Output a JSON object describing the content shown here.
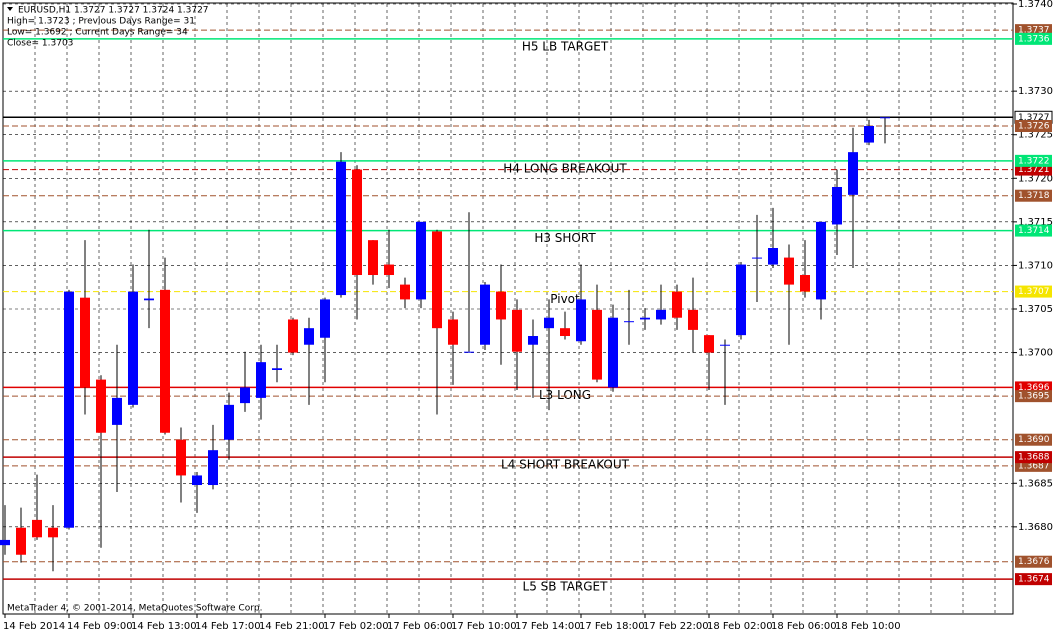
{
  "chart_data": {
    "type": "candlestick",
    "header": [
      "EURUSD,H1  1.3727 1.3727 1.3724 1.3727",
      "High= 1.3723 ;  Previous Days Range= 31",
      "Low= 1.3692 ;  Current Days Range= 34",
      "Close= 1.3703"
    ],
    "copyright": "MetaTrader 4, © 2001-2014, MetaQuotes Software Corp.",
    "categories": [
      "14 Feb 2014",
      null,
      null,
      null,
      "14 Feb 09:00",
      null,
      null,
      null,
      "14 Feb 13:00",
      null,
      null,
      null,
      "14 Feb 17:00",
      null,
      null,
      null,
      "14 Feb 21:00",
      null,
      null,
      null,
      "17 Feb 02:00",
      null,
      null,
      null,
      "17 Feb 06:00",
      null,
      null,
      null,
      "17 Feb 10:00",
      null,
      null,
      null,
      "17 Feb 14:00",
      null,
      null,
      null,
      "17 Feb 18:00",
      null,
      null,
      null,
      "17 Feb 22:00",
      null,
      null,
      null,
      "18 Feb 02:00",
      null,
      null,
      null,
      "18 Feb 06:00",
      null,
      null,
      null,
      "18 Feb 10:00",
      null,
      null,
      null
    ],
    "open": [
      1.36779,
      1.36799,
      1.36808,
      1.36799,
      1.36799,
      1.37063,
      1.36969,
      1.36917,
      1.3694,
      1.3706,
      1.37072,
      1.369,
      1.36848,
      1.36848,
      1.369,
      1.36942,
      1.36948,
      1.3698,
      1.37038,
      1.37009,
      1.37017,
      1.37066,
      1.3721,
      1.37129,
      1.37101,
      1.37078,
      1.37061,
      1.37139,
      1.37038,
      1.37001,
      1.37009,
      1.3707,
      1.37049,
      1.37009,
      1.37028,
      1.37028,
      1.37013,
      1.37049,
      1.3696,
      1.37036,
      1.37038,
      1.37038,
      1.3707,
      1.37049,
      1.3702,
      1.37009,
      1.3702,
      1.37109,
      1.37101,
      1.37109,
      1.37089,
      1.37061,
      1.37147,
      1.37181,
      1.37241,
      1.3727
    ],
    "high": [
      1.36825,
      1.36822,
      1.3686,
      1.36825,
      1.37072,
      1.37129,
      1.36974,
      1.37009,
      1.37101,
      1.37141,
      1.37109,
      1.36914,
      1.36863,
      1.36917,
      1.36954,
      1.37001,
      1.37009,
      1.37009,
      1.3704,
      1.3704,
      1.37063,
      1.3723,
      1.37215,
      1.37129,
      1.37141,
      1.37086,
      1.3715,
      1.37141,
      1.37047,
      1.37161,
      1.37081,
      1.37101,
      1.37061,
      1.37038,
      1.37061,
      1.37047,
      1.37101,
      1.37078,
      1.37055,
      1.37072,
      1.37051,
      1.37078,
      1.37078,
      1.37086,
      1.3702,
      1.37015,
      1.37104,
      1.37158,
      1.37166,
      1.37124,
      1.37129,
      1.3715,
      1.3721,
      1.37258,
      1.37267,
      1.3727
    ],
    "low": [
      1.36768,
      1.36759,
      1.36785,
      1.36749,
      1.36797,
      1.36929,
      1.36776,
      1.3684,
      1.36937,
      1.37028,
      1.36906,
      1.36828,
      1.36816,
      1.36843,
      1.36877,
      1.36932,
      1.36923,
      1.36966,
      1.36997,
      1.3694,
      1.36966,
      1.37063,
      1.37038,
      1.37078,
      1.37074,
      1.37051,
      1.37051,
      1.36929,
      1.36963,
      1.37001,
      1.37003,
      1.36986,
      1.36957,
      1.36948,
      1.36934,
      1.37015,
      1.37009,
      1.36966,
      1.36955,
      1.37009,
      1.37026,
      1.37032,
      1.37026,
      1.37,
      1.36957,
      1.3694,
      1.37015,
      1.37058,
      1.37097,
      1.37009,
      1.37063,
      1.37038,
      1.37112,
      1.37097,
      1.37238,
      1.3724
    ],
    "close": [
      1.36785,
      1.36768,
      1.36788,
      1.36788,
      1.3707,
      1.3696,
      1.36908,
      1.36948,
      1.3707,
      1.37062,
      1.36908,
      1.36859,
      1.36859,
      1.36888,
      1.3694,
      1.3696,
      1.36989,
      1.36982,
      1.37,
      1.37028,
      1.37061,
      1.37219,
      1.37089,
      1.37089,
      1.37089,
      1.37061,
      1.3715,
      1.37028,
      1.37009,
      1.37001,
      1.37078,
      1.37038,
      1.37001,
      1.37019,
      1.3704,
      1.37019,
      1.37061,
      1.36969,
      1.3704,
      1.37036,
      1.3704,
      1.37049,
      1.3704,
      1.37026,
      1.37,
      1.37009,
      1.37101,
      1.37109,
      1.3712,
      1.37078,
      1.3707,
      1.3715,
      1.3719,
      1.3723,
      1.3726,
      1.3727
    ],
    "bull_color": "#0000ff",
    "bear_color": "#ff0000",
    "wick_color": "#000000",
    "ylim": [
      1.367,
      1.374
    ],
    "yticks": [
      {
        "value": 1.374,
        "label": "1.3740"
      },
      {
        "value": 1.373,
        "label": "1.3730"
      },
      1.3725,
      {
        "value": 1.372,
        "label": "1.3720"
      },
      1.3715,
      {
        "value": 1.371,
        "label": "1.3710"
      },
      1.3705,
      {
        "value": 1.37,
        "label": "1.3700"
      },
      1.3685,
      {
        "value": 1.368,
        "label": "1.3680"
      }
    ],
    "grid": true,
    "levels": [
      {
        "value": 1.3737,
        "color": "#a0522d",
        "style": "dashed"
      },
      {
        "value": 1.3736,
        "color": "#00e676",
        "style": "solid",
        "name": "H5 LB TARGET"
      },
      {
        "value": 1.3727,
        "color": "#000000",
        "style": "solid"
      },
      {
        "value": 1.3726,
        "color": "#a0522d",
        "style": "dashed"
      },
      {
        "value": 1.3721,
        "color": "#c00000",
        "style": "dashed"
      },
      {
        "value": 1.3722,
        "color": "#00e676",
        "style": "solid",
        "name": "H4 LONG BREAKOUT"
      },
      {
        "value": 1.3718,
        "color": "#a0522d",
        "style": "dashed"
      },
      {
        "value": 1.3714,
        "color": "#00e676",
        "style": "solid",
        "name": "H3 SHORT"
      },
      {
        "value": 1.3707,
        "color": "#f5e500",
        "style": "dashed",
        "name": "Pivot"
      },
      {
        "value": 1.3696,
        "color": "#e00000",
        "style": "solid",
        "name": "L3 LONG"
      },
      {
        "value": 1.3695,
        "color": "#a0522d",
        "style": "dashed"
      },
      {
        "value": 1.369,
        "label": "1.3690",
        "color": "#a0522d",
        "style": "dashed"
      },
      {
        "value": 1.3687,
        "color": "#a0522d",
        "style": "dashed"
      },
      {
        "value": 1.3688,
        "color": "#c00000",
        "style": "solid",
        "name": "L4 SHORT BREAKOUT"
      },
      {
        "value": 1.3676,
        "color": "#a0522d",
        "style": "dashed"
      },
      {
        "value": 1.3674,
        "color": "#c00000",
        "style": "solid",
        "name": "L5 SB TARGET"
      }
    ]
  }
}
